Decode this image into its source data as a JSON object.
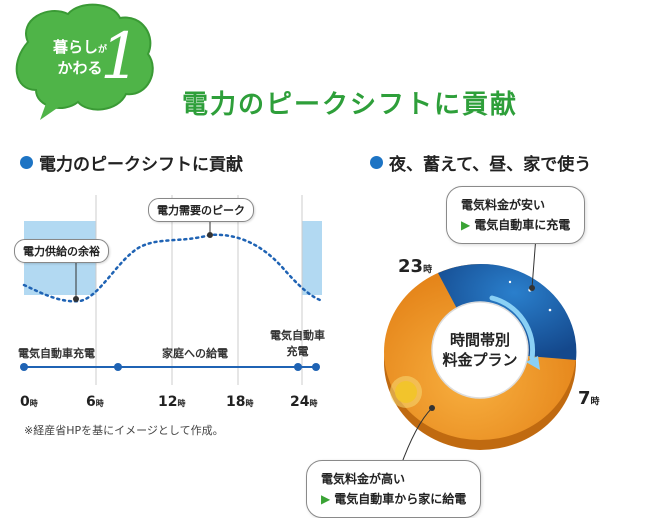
{
  "badge": {
    "line1": "暮らし",
    "line1_small": "が",
    "line2": "かわる",
    "number": "1"
  },
  "main_title": "電力のピークシフトに貢献",
  "left_section": {
    "title": "電力のピークシフトに貢献",
    "callout_supply": "電力供給の余裕",
    "callout_peak": "電力需要のピーク",
    "timeline_labels": {
      "ev_charge": "電気自動車充電",
      "home_supply": "家庭への給電",
      "ev_charge2_line1": "電気自動車",
      "ev_charge2_line2": "充電"
    },
    "axis_ticks": [
      {
        "num": "0",
        "unit": "時"
      },
      {
        "num": "6",
        "unit": "時"
      },
      {
        "num": "12",
        "unit": "時"
      },
      {
        "num": "18",
        "unit": "時"
      },
      {
        "num": "24",
        "unit": "時"
      }
    ],
    "note": "※経産省HPを基にイメージとして作成。"
  },
  "right_section": {
    "title": "夜、蓄えて、昼、家で使う",
    "bubble_cheap_line1": "電気料金が安い",
    "bubble_cheap_line2": "電気自動車に充電",
    "bubble_expensive_line1": "電気料金が高い",
    "bubble_expensive_line2": "電気自動車から家に給電",
    "hour_23": {
      "num": "23",
      "unit": "時"
    },
    "hour_7": {
      "num": "7",
      "unit": "時"
    },
    "center_line1": "時間帯別",
    "center_line2": "料金プラン"
  },
  "colors": {
    "brand_green": "#2e9f3a",
    "accent_blue": "#1d74c4",
    "night_blue": "#1a5ea8",
    "day_orange": "#f0951e"
  }
}
